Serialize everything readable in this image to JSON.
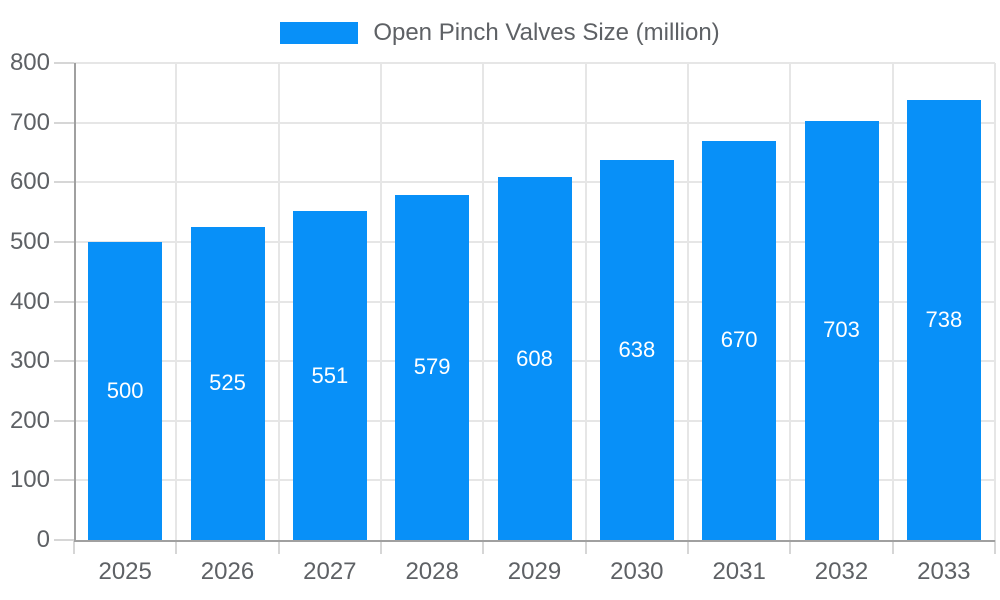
{
  "legend": {
    "label": "Open Pinch Valves Size (million)",
    "position": "top"
  },
  "chart_data": {
    "type": "bar",
    "title": "Open Pinch Valves Size (million)",
    "series_name": "Open Pinch Valves Size (million)",
    "categories": [
      "2025",
      "2026",
      "2027",
      "2028",
      "2029",
      "2030",
      "2031",
      "2032",
      "2033"
    ],
    "values": [
      500,
      525,
      551,
      579,
      608,
      638,
      670,
      703,
      738
    ],
    "xlabel": "",
    "ylabel": "",
    "ylim": [
      0,
      800
    ],
    "ytick_step": 100,
    "yticks": [
      0,
      100,
      200,
      300,
      400,
      500,
      600,
      700,
      800
    ],
    "grid": true,
    "legend_position": "top",
    "value_label_position": "inside-center"
  },
  "colors": {
    "bar": "#0890f8",
    "grid": "#e6e6e6",
    "axis": "#a0a0a0",
    "tick": "#d6d6d6",
    "text": "#5e6165",
    "value_label": "#ffffff",
    "background": "#ffffff"
  }
}
